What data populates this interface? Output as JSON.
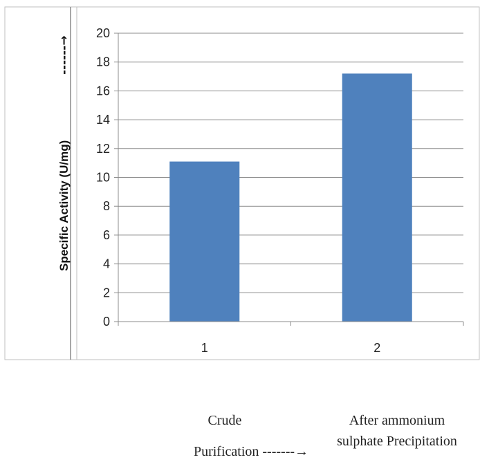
{
  "chart_data": {
    "type": "bar",
    "categories": [
      "1",
      "2"
    ],
    "values": [
      11.1,
      17.2
    ],
    "ylabel": "Specific Activity (U/mg)",
    "ylabel_arrow": "------→",
    "ylim": [
      0,
      20
    ],
    "yticks": [
      0,
      2,
      4,
      6,
      8,
      10,
      12,
      14,
      16,
      18,
      20
    ],
    "grid": true,
    "bar_color": "#4f81bd"
  },
  "annotations": {
    "crude": "Crude",
    "after_line1": "After ammonium",
    "after_line2": "sulphate Precipitation",
    "purification": "Purification  -------→"
  }
}
